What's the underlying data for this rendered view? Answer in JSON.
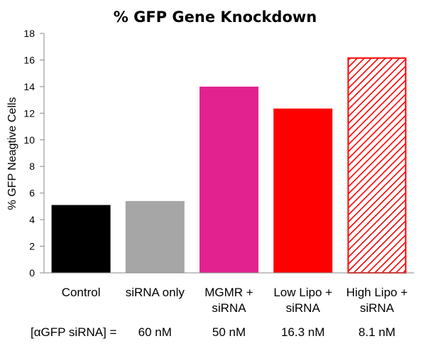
{
  "chart_data": {
    "type": "bar",
    "title": "% GFP Gene Knockdown",
    "ylabel": "% GFP Neagtive Cells",
    "xlabel": "",
    "ylim": [
      0,
      18
    ],
    "yticks": [
      0,
      2,
      4,
      6,
      8,
      10,
      12,
      14,
      16,
      18
    ],
    "grid": false,
    "categories": [
      [
        "Control"
      ],
      [
        "siRNA only"
      ],
      [
        "MGMR +",
        "siRNA"
      ],
      [
        "Low Lipo +",
        "siRNA"
      ],
      [
        "High Lipo +",
        "siRNA"
      ]
    ],
    "values": [
      5.1,
      5.4,
      14.0,
      12.35,
      16.2
    ],
    "bar_colors": [
      "#000000",
      "#a6a6a6",
      "#e2238f",
      "#ff0000",
      "#ff0000"
    ],
    "bar_patterns": [
      "solid",
      "solid",
      "solid",
      "solid",
      "diagonal-hatch"
    ],
    "concentration_label": "[αGFP siRNA] =",
    "concentrations": [
      "",
      "60 nM",
      "50 nM",
      "16.3 nM",
      "8.1 nM"
    ]
  }
}
